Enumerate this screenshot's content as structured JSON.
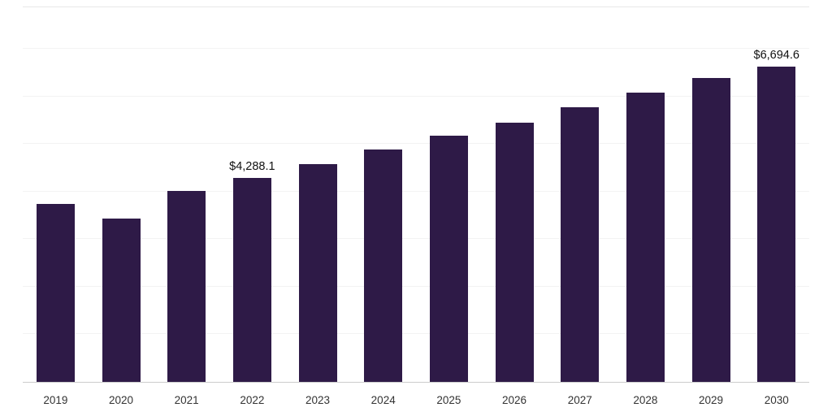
{
  "chart_data": {
    "type": "bar",
    "title": "",
    "xlabel": "",
    "ylabel": "",
    "categories": [
      "2019",
      "2020",
      "2021",
      "2022",
      "2023",
      "2024",
      "2025",
      "2026",
      "2027",
      "2028",
      "2029",
      "2030"
    ],
    "values": [
      3740,
      3430,
      4010,
      4288.1,
      4580,
      4890,
      5180,
      5450,
      5770,
      6080,
      6390,
      6694.6
    ],
    "data_labels": {
      "2022": "$4,288.1",
      "2030": "$6,694.6"
    },
    "ylim": [
      0,
      7000
    ],
    "grid_step": 1000,
    "grid": true,
    "legend": false,
    "bar_color": "#2e1a47",
    "axis_line_color": "#cccccc",
    "gridline_color": "#f3f3f3"
  }
}
